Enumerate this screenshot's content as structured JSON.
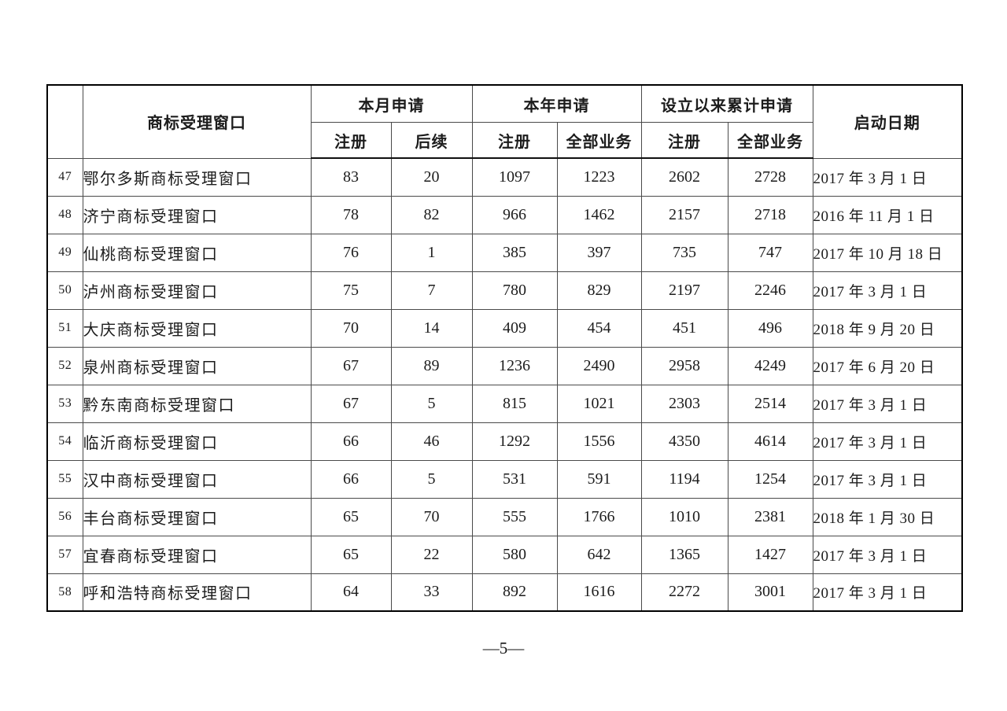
{
  "page": {
    "footer_page_number": "—5—"
  },
  "table": {
    "header": {
      "index": "",
      "window": "商标受理窗口",
      "group_month": "本月申请",
      "group_year": "本年申请",
      "group_total": "设立以来累计申请",
      "launch_date": "启动日期",
      "sub": [
        "注册",
        "后续",
        "注册",
        "全部业务",
        "注册",
        "全部业务"
      ]
    },
    "rows": [
      {
        "no": "47",
        "name": "鄂尔多斯商标受理窗口",
        "month_reg": "83",
        "month_follow": "20",
        "year_reg": "1097",
        "year_all": "1223",
        "total_reg": "2602",
        "total_all": "2728",
        "launch": "2017 年 3 月 1 日"
      },
      {
        "no": "48",
        "name": "济宁商标受理窗口",
        "month_reg": "78",
        "month_follow": "82",
        "year_reg": "966",
        "year_all": "1462",
        "total_reg": "2157",
        "total_all": "2718",
        "launch": "2016 年 11 月 1 日"
      },
      {
        "no": "49",
        "name": "仙桃商标受理窗口",
        "month_reg": "76",
        "month_follow": "1",
        "year_reg": "385",
        "year_all": "397",
        "total_reg": "735",
        "total_all": "747",
        "launch": "2017 年 10 月 18 日"
      },
      {
        "no": "50",
        "name": "泸州商标受理窗口",
        "month_reg": "75",
        "month_follow": "7",
        "year_reg": "780",
        "year_all": "829",
        "total_reg": "2197",
        "total_all": "2246",
        "launch": "2017 年 3 月 1 日"
      },
      {
        "no": "51",
        "name": "大庆商标受理窗口",
        "month_reg": "70",
        "month_follow": "14",
        "year_reg": "409",
        "year_all": "454",
        "total_reg": "451",
        "total_all": "496",
        "launch": "2018 年 9 月 20 日"
      },
      {
        "no": "52",
        "name": "泉州商标受理窗口",
        "month_reg": "67",
        "month_follow": "89",
        "year_reg": "1236",
        "year_all": "2490",
        "total_reg": "2958",
        "total_all": "4249",
        "launch": "2017 年 6 月 20 日"
      },
      {
        "no": "53",
        "name": "黔东南商标受理窗口",
        "month_reg": "67",
        "month_follow": "5",
        "year_reg": "815",
        "year_all": "1021",
        "total_reg": "2303",
        "total_all": "2514",
        "launch": "2017 年 3 月 1 日"
      },
      {
        "no": "54",
        "name": "临沂商标受理窗口",
        "month_reg": "66",
        "month_follow": "46",
        "year_reg": "1292",
        "year_all": "1556",
        "total_reg": "4350",
        "total_all": "4614",
        "launch": "2017 年 3 月 1 日"
      },
      {
        "no": "55",
        "name": "汉中商标受理窗口",
        "month_reg": "66",
        "month_follow": "5",
        "year_reg": "531",
        "year_all": "591",
        "total_reg": "1194",
        "total_all": "1254",
        "launch": "2017 年 3 月 1 日"
      },
      {
        "no": "56",
        "name": "丰台商标受理窗口",
        "month_reg": "65",
        "month_follow": "70",
        "year_reg": "555",
        "year_all": "1766",
        "total_reg": "1010",
        "total_all": "2381",
        "launch": "2018 年 1 月 30 日"
      },
      {
        "no": "57",
        "name": "宜春商标受理窗口",
        "month_reg": "65",
        "month_follow": "22",
        "year_reg": "580",
        "year_all": "642",
        "total_reg": "1365",
        "total_all": "1427",
        "launch": "2017 年 3 月 1 日"
      },
      {
        "no": "58",
        "name": "呼和浩特商标受理窗口",
        "month_reg": "64",
        "month_follow": "33",
        "year_reg": "892",
        "year_all": "1616",
        "total_reg": "2272",
        "total_all": "3001",
        "launch": "2017 年 3 月 1 日"
      }
    ]
  }
}
